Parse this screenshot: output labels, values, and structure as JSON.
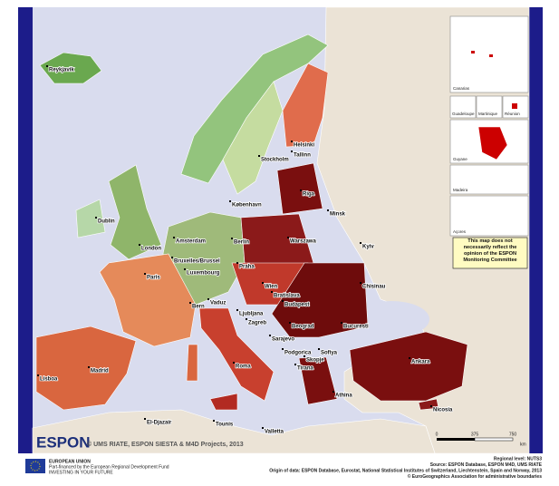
{
  "map": {
    "cities": [
      "Reykjavik",
      "Helsinki",
      "Tallinn",
      "Stockholm",
      "Riga",
      "Minsk",
      "København",
      "Dublin",
      "Amsterdam",
      "Berlin",
      "Warszawa",
      "London",
      "Kyiv",
      "Bruxelles/Brussel",
      "Luxembourg",
      "Praha",
      "Paris",
      "Wien",
      "Bratislava",
      "Chisinau",
      "Bern",
      "Vaduz",
      "Ljubljana",
      "Budapest",
      "Zagreb",
      "Beograd",
      "Bucuresti",
      "Sarajevo",
      "Podgorica",
      "Sofiya",
      "Skopje",
      "Tirana",
      "Roma",
      "Ankara",
      "Madrid",
      "Lisboa",
      "Athina",
      "Valletta",
      "Tounis",
      "El-Djazair",
      "Nicosia"
    ],
    "insets": [
      "Canarias",
      "Guadeloupe",
      "Martinique",
      "Réunion",
      "Guyane",
      "Madeira",
      "Açores"
    ],
    "disclaimer": "This map does not necessarily reflect the opinion of the ESPON Monitoring Committee",
    "logo": "ESPON",
    "copyright": "© UMS RIATE, ESPON SIESTA & M4D Projects, 2013",
    "scale": {
      "ticks": [
        "0",
        "375",
        "750"
      ],
      "unit": "km"
    }
  },
  "footer": {
    "eu": [
      "EUROPEAN UNION",
      "Part-financed by the European Regional Development Fund",
      "INVESTING IN YOUR FUTURE"
    ],
    "sources": [
      "Regional level: NUTS3",
      "Source: ESPON Database, ESPON M4D, UMS RIATE",
      "Origin of data: ESPON Database, Eurostat, National Statistical Institutes of Switzerland, Liechtenstein, Spain and Norway, 2013",
      "© EuroGeographics Association for administrative boundaries"
    ]
  }
}
